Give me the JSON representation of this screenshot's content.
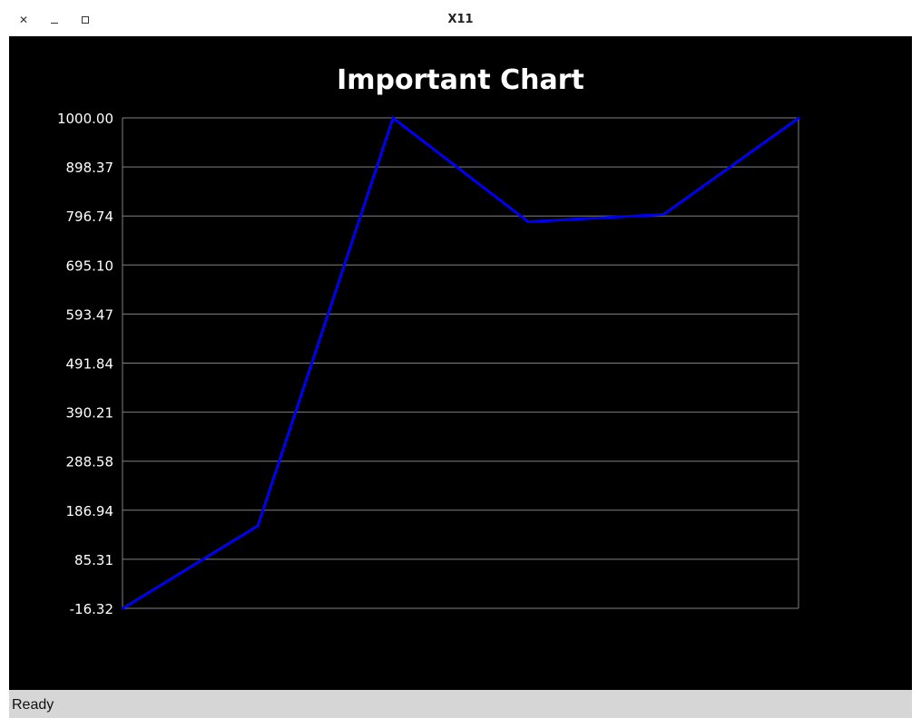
{
  "window": {
    "title": "X11",
    "close_icon": "close-icon",
    "minimize_icon": "minimize-icon",
    "maximize_icon": "maximize-icon"
  },
  "colors": {
    "background": "#000000",
    "line": "#0000ee",
    "grid": "#808080",
    "text": "#ffffff",
    "statusbar": "#d6d6d6"
  },
  "chart_data": {
    "type": "line",
    "title": "Important Chart",
    "xlabel": "",
    "ylabel": "",
    "x": [
      0,
      1,
      2,
      3,
      4,
      5
    ],
    "series": [
      {
        "values": [
          -16.32,
          155,
          1000,
          785,
          800,
          1000
        ]
      }
    ],
    "ylim": [
      -16.32,
      1000.0
    ],
    "yticks": [
      "1000.00",
      "898.37",
      "796.74",
      "695.10",
      "593.47",
      "491.84",
      "390.21",
      "288.58",
      "186.94",
      "85.31",
      "-16.32"
    ],
    "grid": true,
    "legend": "none"
  },
  "status": {
    "text": "Ready"
  }
}
